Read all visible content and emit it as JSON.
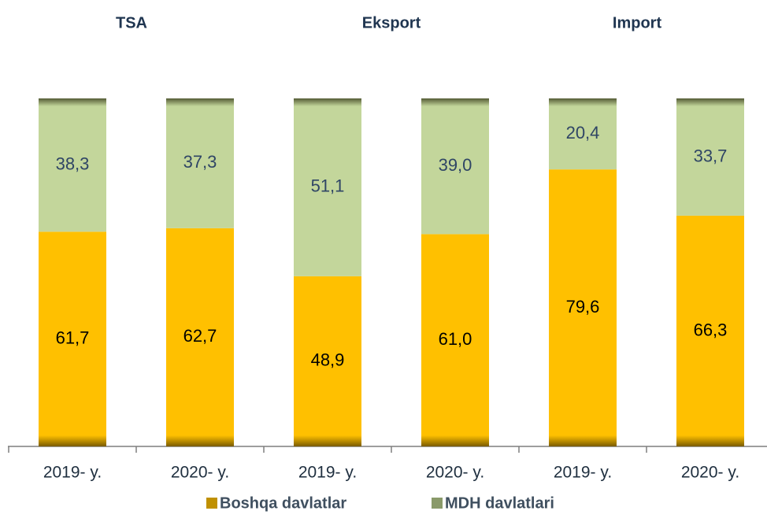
{
  "chart_data": {
    "type": "bar",
    "stacked": true,
    "groups": [
      "TSA",
      "Eksport",
      "Import"
    ],
    "categories": [
      "2019- y.",
      "2020- y.",
      "2019- y.",
      "2020- y.",
      "2019- y.",
      "2020- y."
    ],
    "ylim": [
      0,
      100
    ],
    "series": [
      {
        "name": "Boshqa davlatlar",
        "color": "#ffc000",
        "values": [
          61.7,
          62.7,
          48.9,
          61.0,
          79.6,
          66.3
        ],
        "value_labels": [
          "61,7",
          "62,7",
          "48,9",
          "61,0",
          "79,6",
          "66,3"
        ]
      },
      {
        "name": "MDH davlatlari",
        "color": "#c3d69b",
        "values": [
          38.3,
          37.3,
          51.1,
          39.0,
          20.4,
          33.7
        ],
        "value_labels": [
          "38,3",
          "37,3",
          "51,1",
          "39,0",
          "20,4",
          "33,7"
        ]
      }
    ]
  }
}
